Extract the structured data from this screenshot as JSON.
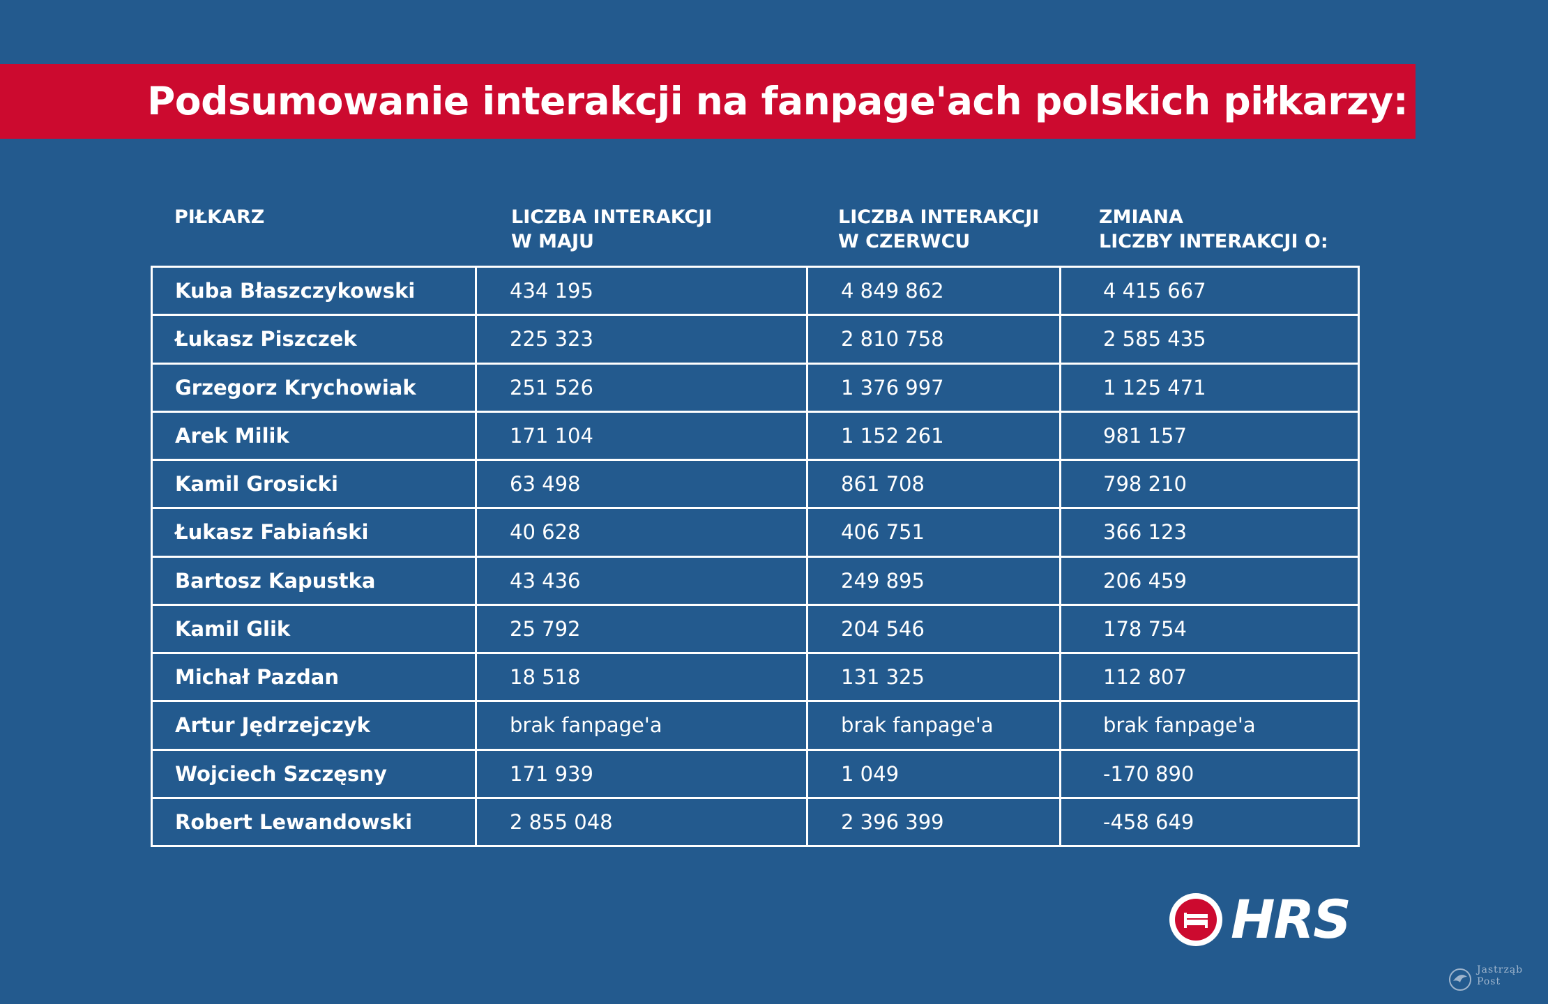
{
  "title": "Podsumowanie interakcji na fanpage'ach polskich piłkarzy:",
  "colors": {
    "background": "#235a8e",
    "banner": "#cc0a2f",
    "text": "#ffffff"
  },
  "chart_data": {
    "type": "table",
    "columns": [
      "PIŁKARZ",
      "LICZBA INTERAKCJI\nW MAJU",
      "LICZBA INTERAKCJI\nW CZERWCU",
      "ZMIANA\nLICZBY INTERAKCJI O:"
    ],
    "rows": [
      [
        "Kuba Błaszczykowski",
        "434 195",
        "4 849 862",
        "4 415 667"
      ],
      [
        "Łukasz Piszczek",
        " 225 323",
        "2 810 758",
        "2 585 435"
      ],
      [
        "Grzegorz Krychowiak",
        "251 526",
        "1 376 997",
        "1 125 471"
      ],
      [
        "Arek Milik",
        "171 104",
        "1 152 261",
        "981 157"
      ],
      [
        "Kamil Grosicki",
        "63 498",
        "861 708",
        "798 210"
      ],
      [
        "Łukasz Fabiański",
        "40 628",
        "406 751",
        "366 123"
      ],
      [
        "Bartosz Kapustka",
        "43 436",
        "249 895",
        "206 459"
      ],
      [
        "Kamil Glik",
        "25 792",
        "204 546",
        "178 754"
      ],
      [
        "Michał Pazdan",
        "18 518",
        "131 325",
        "112 807"
      ],
      [
        "Artur Jędrzejczyk",
        "brak fanpage'a",
        "brak fanpage'a",
        "brak fanpage'a"
      ],
      [
        "Wojciech Szczęsny",
        "171 939",
        "1 049",
        "-170 890"
      ],
      [
        "Robert Lewandowski",
        "2 855 048",
        "2 396 399",
        "-458 649"
      ]
    ]
  },
  "logo": {
    "text": "HRS",
    "icon": "bed-icon"
  },
  "watermark": {
    "text": "Jastrząb\nPost",
    "icon": "hawk-icon"
  }
}
